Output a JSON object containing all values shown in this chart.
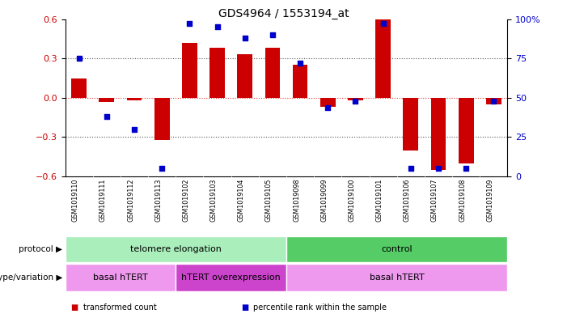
{
  "title": "GDS4964 / 1553194_at",
  "samples": [
    "GSM1019110",
    "GSM1019111",
    "GSM1019112",
    "GSM1019113",
    "GSM1019102",
    "GSM1019103",
    "GSM1019104",
    "GSM1019105",
    "GSM1019098",
    "GSM1019099",
    "GSM1019100",
    "GSM1019101",
    "GSM1019106",
    "GSM1019107",
    "GSM1019108",
    "GSM1019109"
  ],
  "bar_values": [
    0.15,
    -0.03,
    -0.02,
    -0.32,
    0.42,
    0.38,
    0.33,
    0.38,
    0.25,
    -0.07,
    -0.02,
    0.6,
    -0.4,
    -0.55,
    -0.5,
    -0.05
  ],
  "dot_values_pct": [
    75,
    38,
    30,
    5,
    97,
    95,
    88,
    90,
    72,
    44,
    48,
    97,
    5,
    5,
    5,
    48
  ],
  "ylim": [
    -0.6,
    0.6
  ],
  "yticks_left": [
    -0.6,
    -0.3,
    0.0,
    0.3,
    0.6
  ],
  "yticks_right": [
    0,
    25,
    50,
    75,
    100
  ],
  "hlines": [
    -0.3,
    0.3
  ],
  "bar_color": "#cc0000",
  "dot_color": "#0000cc",
  "zero_line_color": "#ee3333",
  "grid_line_color": "#555555",
  "protocol_segments": [
    {
      "label": "telomere elongation",
      "start": 0,
      "end": 8,
      "color": "#aaeebb"
    },
    {
      "label": "control",
      "start": 8,
      "end": 16,
      "color": "#55cc66"
    }
  ],
  "genotype_segments": [
    {
      "label": "basal hTERT",
      "start": 0,
      "end": 4,
      "color": "#ee99ee"
    },
    {
      "label": "hTERT overexpression",
      "start": 4,
      "end": 8,
      "color": "#cc44cc"
    },
    {
      "label": "basal hTERT",
      "start": 8,
      "end": 16,
      "color": "#ee99ee"
    }
  ],
  "legend_items": [
    {
      "label": "transformed count",
      "color": "#cc0000"
    },
    {
      "label": "percentile rank within the sample",
      "color": "#0000cc"
    }
  ],
  "protocol_row_label": "protocol",
  "genotype_row_label": "genotype/variation",
  "background_color": "#ffffff",
  "sample_area_color": "#bbbbbb"
}
